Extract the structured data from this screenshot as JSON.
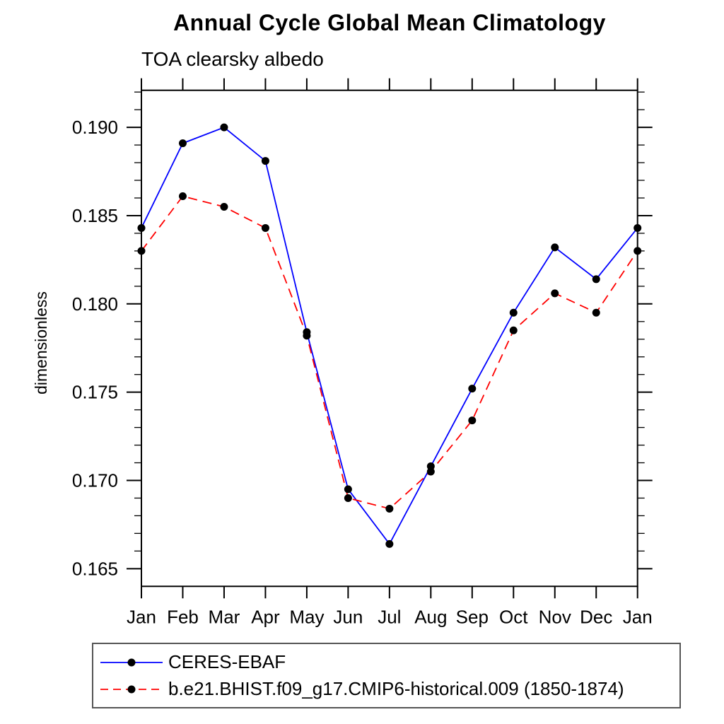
{
  "chart_data": {
    "type": "line",
    "title": "Annual Cycle Global Mean Climatology",
    "subtitle": "TOA clearsky albedo",
    "ylabel": "dimensionless",
    "xlabel": "",
    "categories": [
      "Jan",
      "Feb",
      "Mar",
      "Apr",
      "May",
      "Jun",
      "Jul",
      "Aug",
      "Sep",
      "Oct",
      "Nov",
      "Dec",
      "Jan"
    ],
    "ylim": [
      0.164,
      0.1921
    ],
    "yticks_major": [
      0.165,
      0.17,
      0.175,
      0.18,
      0.185,
      0.19
    ],
    "ytick_minor_interval": 0.001,
    "grid": false,
    "legend_position": "below-plot-left-box",
    "series": [
      {
        "name": "CERES-EBAF",
        "color": "#0000ff",
        "line_style": "solid",
        "marker": "filled-circle",
        "marker_color": "#000000",
        "values": [
          0.1843,
          0.1891,
          0.19,
          0.1881,
          0.1784,
          0.1695,
          0.1664,
          0.1708,
          0.1752,
          0.1795,
          0.1832,
          0.1814,
          0.1843
        ]
      },
      {
        "name": "b.e21.BHIST.f09_g17.CMIP6-historical.009 (1850-1874)",
        "color": "#ff0000",
        "line_style": "dashed",
        "marker": "filled-circle",
        "marker_color": "#000000",
        "values": [
          0.183,
          0.1861,
          0.1855,
          0.1843,
          0.1782,
          0.169,
          0.1684,
          0.1705,
          0.1734,
          0.1785,
          0.1806,
          0.1795,
          0.183
        ]
      }
    ]
  }
}
